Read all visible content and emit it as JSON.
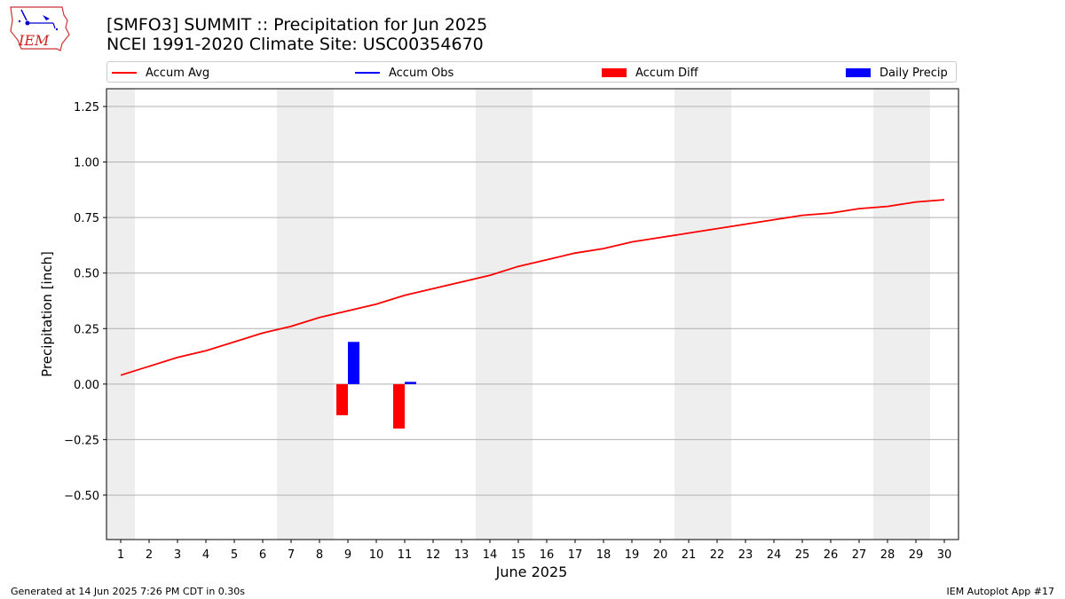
{
  "header": {
    "title_line1": "[SMFO3] SUMMIT :: Precipitation for Jun 2025",
    "title_line2": "NCEI 1991-2020 Climate Site: USC00354670",
    "logo_text": "IEM"
  },
  "legend": {
    "items": [
      {
        "label": "Accum Avg",
        "kind": "line",
        "color": "#ff0000"
      },
      {
        "label": "Accum Obs",
        "kind": "line",
        "color": "#0000ff"
      },
      {
        "label": "Accum Diff",
        "kind": "patch",
        "color": "#ff0000"
      },
      {
        "label": "Daily Precip",
        "kind": "patch",
        "color": "#0000ff"
      }
    ]
  },
  "footer": {
    "left": "Generated at 14 Jun 2025 7:26 PM CDT in 0.30s",
    "right": "IEM Autoplot App #17"
  },
  "chart_data": {
    "type": "bar",
    "xlabel": "June 2025",
    "ylabel": "Precipitation [inch]",
    "x": [
      1,
      2,
      3,
      4,
      5,
      6,
      7,
      8,
      9,
      10,
      11,
      12,
      13,
      14,
      15,
      16,
      17,
      18,
      19,
      20,
      21,
      22,
      23,
      24,
      25,
      26,
      27,
      28,
      29,
      30
    ],
    "ylim": [
      -0.7,
      1.33
    ],
    "yticks": [
      -0.5,
      -0.25,
      0.0,
      0.25,
      0.5,
      0.75,
      1.0,
      1.25
    ],
    "ytick_labels": [
      "−0.50",
      "−0.25",
      "0.00",
      "0.25",
      "0.50",
      "0.75",
      "1.00",
      "1.25"
    ],
    "grid": true,
    "weekend_shading_days": [
      1,
      7,
      8,
      14,
      15,
      21,
      22,
      28,
      29
    ],
    "colors": {
      "avg": "#ff0000",
      "obs": "#0000ff",
      "diff": "#ff0000",
      "daily": "#0000ff",
      "shade": "#eeeeee",
      "grid": "#b0b0b0"
    },
    "series": [
      {
        "name": "Accum Avg",
        "kind": "line",
        "values": [
          0.04,
          0.08,
          0.12,
          0.15,
          0.19,
          0.23,
          0.26,
          0.3,
          0.33,
          0.36,
          0.4,
          0.43,
          0.46,
          0.49,
          0.53,
          0.56,
          0.59,
          0.61,
          0.64,
          0.66,
          0.68,
          0.7,
          0.72,
          0.74,
          0.76,
          0.77,
          0.79,
          0.8,
          0.82,
          0.83
        ]
      },
      {
        "name": "Accum Diff",
        "kind": "bar",
        "points": [
          {
            "x": 9,
            "y": -0.14
          },
          {
            "x": 11,
            "y": -0.2
          }
        ]
      },
      {
        "name": "Daily Precip",
        "kind": "bar",
        "points": [
          {
            "x": 9,
            "y": 0.19
          },
          {
            "x": 11,
            "y": 0.01
          }
        ]
      }
    ]
  }
}
